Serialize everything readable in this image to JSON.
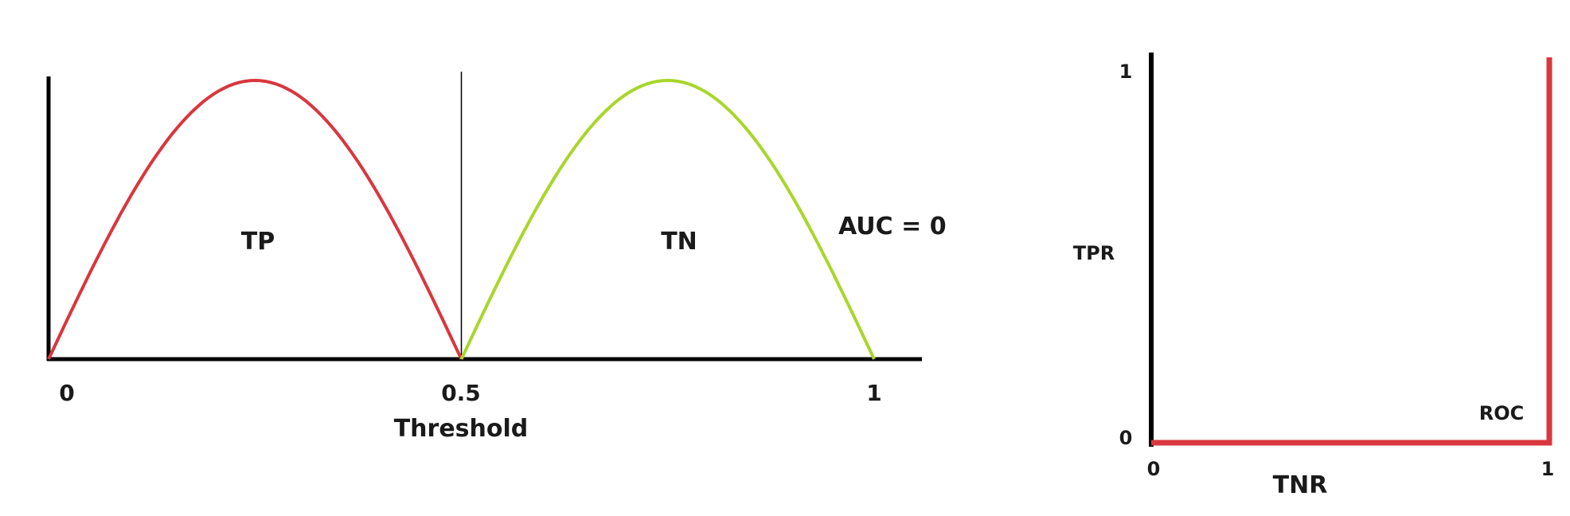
{
  "chart_data": [
    {
      "type": "line",
      "title": "",
      "xlabel": "Threshold",
      "ylabel": "",
      "xlim": [
        0,
        1
      ],
      "ylim": [
        0,
        1
      ],
      "x_ticks": [
        "0",
        "0.5",
        "1"
      ],
      "threshold": 0.5,
      "grid": false,
      "annotation": "AUC = 0",
      "series": [
        {
          "name": "TP",
          "color": "#d9363e",
          "x_start": 0.0,
          "x_end": 0.5,
          "peak_x": 0.25,
          "peak_y": 1.0
        },
        {
          "name": "TN",
          "color": "#a8d62a",
          "x_start": 0.5,
          "x_end": 1.0,
          "peak_x": 0.75,
          "peak_y": 1.0
        }
      ]
    },
    {
      "type": "line",
      "title": "",
      "xlabel": "TNR",
      "ylabel": "TPR",
      "xlim": [
        0,
        1
      ],
      "ylim": [
        0,
        1
      ],
      "x_ticks": [
        "0",
        "1"
      ],
      "y_ticks": [
        "0",
        "1"
      ],
      "grid": false,
      "series": [
        {
          "name": "ROC",
          "color": "#d9363e",
          "x": [
            0,
            1,
            1
          ],
          "y": [
            0,
            0,
            1
          ]
        }
      ]
    }
  ]
}
